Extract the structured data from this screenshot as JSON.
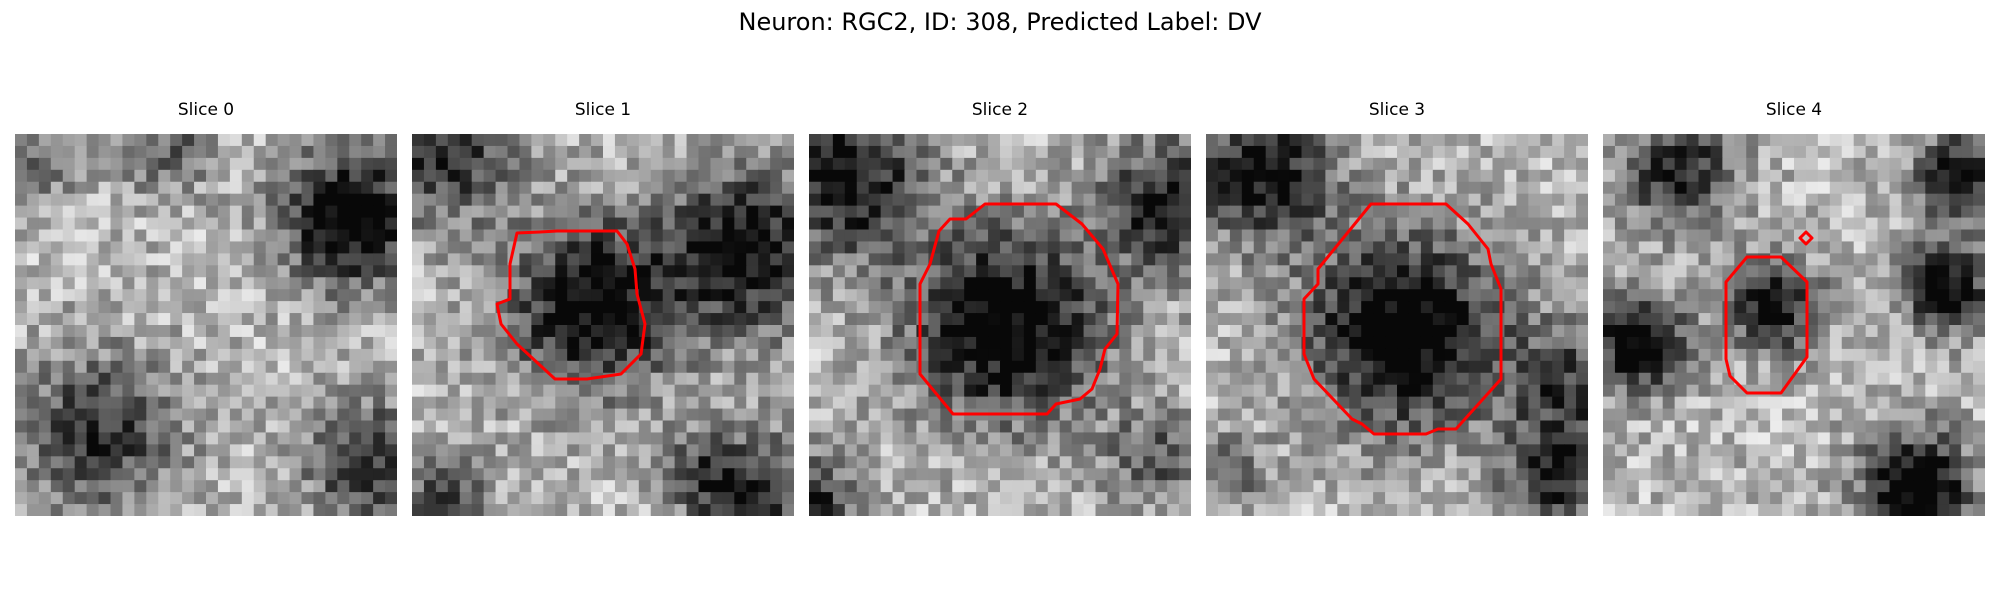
{
  "figure": {
    "title": "Neuron: RGC2, ID: 308, Predicted Label: DV",
    "grid_size": 32,
    "colormap": "gray",
    "outline_color": "#ff0000"
  },
  "slices": [
    {
      "title": "Slice 0",
      "has_outline": false
    },
    {
      "title": "Slice 1",
      "has_outline": true
    },
    {
      "title": "Slice 2",
      "has_outline": true
    },
    {
      "title": "Slice 3",
      "has_outline": true
    },
    {
      "title": "Slice 4",
      "has_outline": true
    }
  ]
}
